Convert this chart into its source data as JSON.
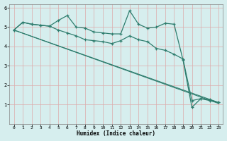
{
  "xlabel": "Humidex (Indice chaleur)",
  "background_color": "#d6eeee",
  "grid_color": "#c8d8d8",
  "line_color": "#2e7d6e",
  "xlim": [
    -0.5,
    23.5
  ],
  "ylim": [
    0,
    6.2
  ],
  "xticks": [
    0,
    1,
    2,
    3,
    4,
    5,
    6,
    7,
    8,
    9,
    10,
    11,
    12,
    13,
    14,
    15,
    16,
    17,
    18,
    19,
    20,
    21,
    22,
    23
  ],
  "yticks": [
    1,
    2,
    3,
    4,
    5,
    6
  ],
  "line1_x": [
    0,
    1,
    2,
    3,
    4,
    5,
    6,
    7,
    8,
    9,
    10,
    11,
    12,
    13,
    14,
    15,
    16,
    17,
    18,
    19,
    20,
    21,
    22,
    23
  ],
  "line1_y": [
    4.85,
    5.25,
    5.15,
    5.1,
    5.05,
    5.35,
    5.6,
    5.0,
    4.95,
    4.75,
    4.7,
    4.65,
    4.65,
    5.85,
    5.15,
    4.95,
    5.0,
    5.2,
    5.15,
    3.3,
    0.85,
    1.3,
    1.2,
    1.1
  ],
  "line2_x": [
    0,
    1,
    2,
    3,
    4,
    5,
    6,
    7,
    8,
    9,
    10,
    11,
    12,
    13,
    14,
    15,
    16,
    17,
    18,
    19,
    20,
    21,
    22,
    23
  ],
  "line2_y": [
    4.85,
    5.25,
    5.15,
    5.1,
    5.05,
    4.85,
    4.7,
    4.55,
    4.35,
    4.3,
    4.25,
    4.15,
    4.3,
    4.55,
    4.35,
    4.25,
    3.9,
    3.8,
    3.6,
    3.35,
    1.2,
    1.3,
    1.25,
    1.1
  ],
  "line3_x": [
    0,
    23
  ],
  "line3_y": [
    4.85,
    1.1
  ],
  "line4_x": [
    0,
    23
  ],
  "line4_y": [
    4.85,
    1.05
  ]
}
